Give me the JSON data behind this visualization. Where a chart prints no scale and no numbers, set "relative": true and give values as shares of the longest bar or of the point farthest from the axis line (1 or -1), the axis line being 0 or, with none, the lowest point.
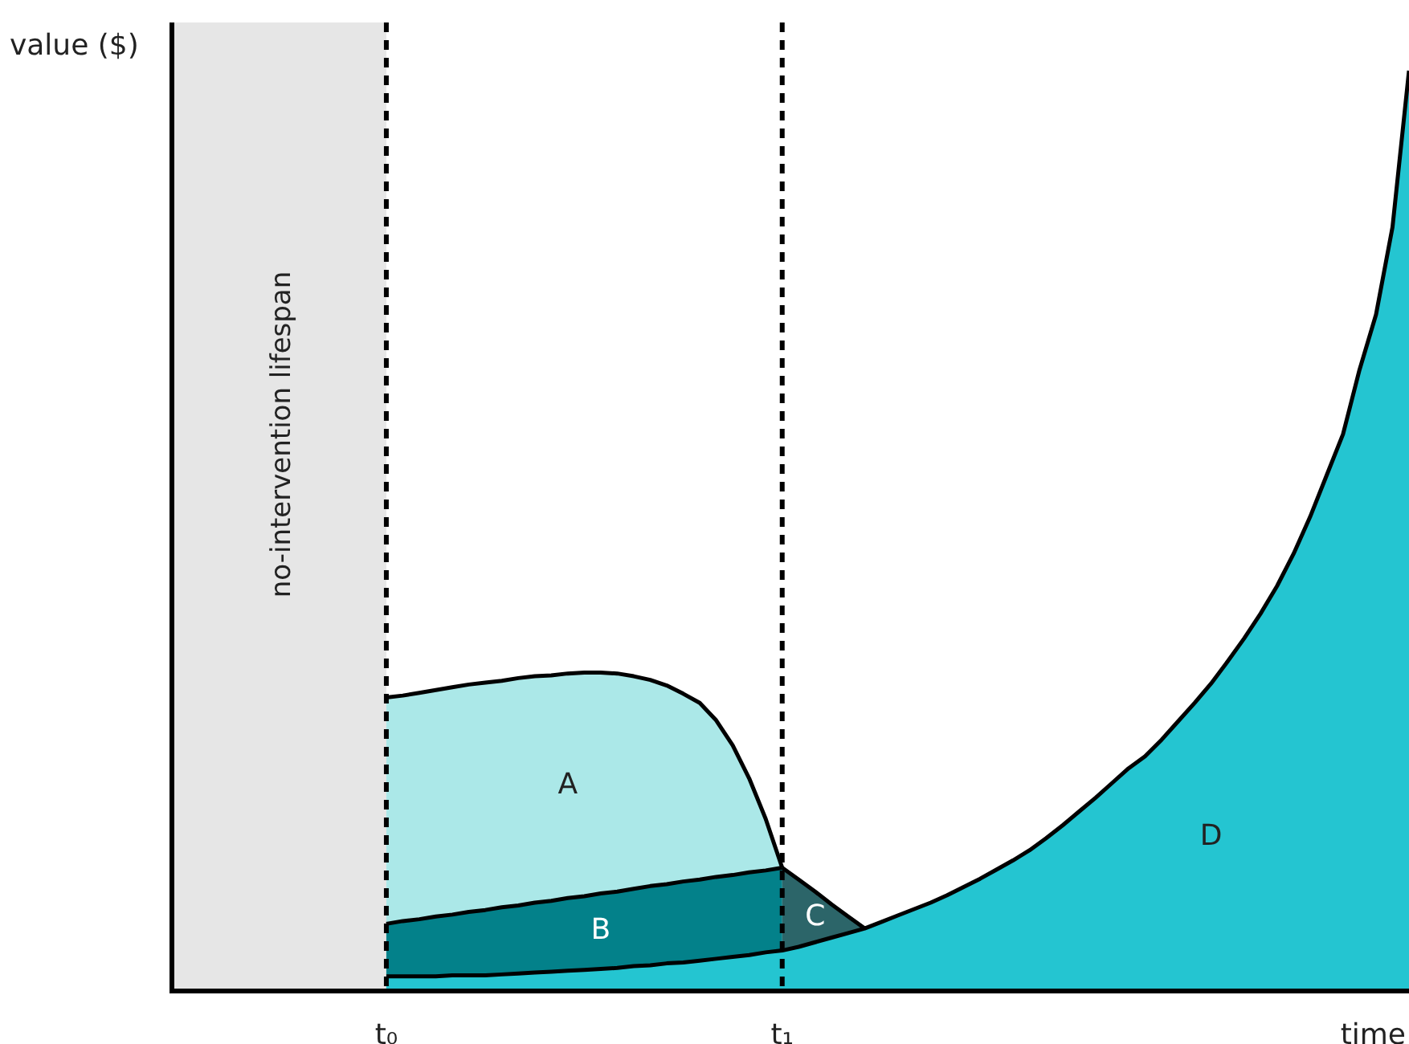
{
  "chart_data": {
    "type": "area",
    "relative": true,
    "xlabel": "time",
    "ylabel": "value ($)",
    "categories": [
      null,
      null,
      null,
      null,
      null,
      null,
      null,
      null,
      null,
      null,
      null,
      null,
      null,
      "t₀",
      null,
      null,
      null,
      null,
      null,
      null,
      null,
      null,
      null,
      null,
      null,
      null,
      null,
      null,
      null,
      null,
      null,
      null,
      null,
      null,
      null,
      null,
      null,
      "t₁",
      null,
      null,
      null,
      null,
      null,
      null,
      null,
      null,
      null,
      null,
      null,
      null,
      null,
      null,
      null,
      null,
      null,
      null,
      null,
      null,
      null,
      null,
      null,
      null,
      null,
      null,
      null,
      null,
      null,
      null,
      null,
      null,
      null,
      null,
      null,
      null,
      null,
      null
    ],
    "series": [
      {
        "name": "A",
        "color": "#abe8e8",
        "values": [
          null,
          null,
          null,
          null,
          null,
          null,
          null,
          null,
          null,
          null,
          null,
          null,
          null,
          0.319,
          0.321,
          0.324,
          0.327,
          0.33,
          0.333,
          0.335,
          0.337,
          0.34,
          0.342,
          0.343,
          0.345,
          0.346,
          0.346,
          0.345,
          0.342,
          0.338,
          0.332,
          0.323,
          0.313,
          0.294,
          0.267,
          0.231,
          0.187,
          0.134,
          null,
          null,
          null,
          null,
          null,
          null,
          null,
          null,
          null,
          null,
          null,
          null,
          null,
          null,
          null,
          null,
          null,
          null,
          null,
          null,
          null,
          null,
          null,
          null,
          null,
          null,
          null,
          null,
          null,
          null,
          null,
          null,
          null,
          null,
          null,
          null,
          null,
          null
        ]
      },
      {
        "name": "B",
        "color": "#03818a",
        "values": [
          null,
          null,
          null,
          null,
          null,
          null,
          null,
          null,
          null,
          null,
          null,
          null,
          null,
          0.073,
          0.076,
          0.078,
          0.081,
          0.083,
          0.086,
          0.088,
          0.091,
          0.093,
          0.096,
          0.098,
          0.101,
          0.103,
          0.106,
          0.108,
          0.111,
          0.114,
          0.116,
          0.119,
          0.121,
          0.124,
          0.126,
          0.129,
          0.131,
          0.134,
          null,
          null,
          null,
          null,
          null,
          null,
          null,
          null,
          null,
          null,
          null,
          null,
          null,
          null,
          null,
          null,
          null,
          null,
          null,
          null,
          null,
          null,
          null,
          null,
          null,
          null,
          null,
          null,
          null,
          null,
          null,
          null,
          null,
          null,
          null,
          null,
          null,
          null
        ]
      },
      {
        "name": "C",
        "color": "#2c6569",
        "values": [
          null,
          null,
          null,
          null,
          null,
          null,
          null,
          null,
          null,
          null,
          null,
          null,
          null,
          null,
          null,
          null,
          null,
          null,
          null,
          null,
          null,
          null,
          null,
          null,
          null,
          null,
          null,
          null,
          null,
          null,
          null,
          null,
          null,
          null,
          null,
          null,
          null,
          0.134,
          0.121,
          0.108,
          0.094,
          0.081,
          0.068,
          null,
          null,
          null,
          null,
          null,
          null,
          null,
          null,
          null,
          null,
          null,
          null,
          null,
          null,
          null,
          null,
          null,
          null,
          null,
          null,
          null,
          null,
          null,
          null,
          null,
          null,
          null,
          null,
          null,
          null,
          null,
          null,
          null
        ]
      },
      {
        "name": "D",
        "color": "#24c5d1",
        "values": [
          null,
          null,
          null,
          null,
          null,
          null,
          null,
          null,
          null,
          null,
          null,
          null,
          null,
          0.016,
          0.016,
          0.016,
          0.016,
          0.017,
          0.017,
          0.017,
          0.018,
          0.019,
          0.02,
          0.021,
          0.022,
          0.023,
          0.024,
          0.025,
          0.027,
          0.028,
          0.03,
          0.031,
          0.033,
          0.035,
          0.037,
          0.039,
          0.042,
          0.044,
          0.048,
          0.053,
          0.058,
          0.063,
          0.068,
          0.075,
          0.082,
          0.089,
          0.096,
          0.104,
          0.113,
          0.122,
          0.132,
          0.142,
          0.153,
          0.166,
          0.18,
          0.195,
          0.21,
          0.226,
          0.242,
          0.255,
          0.273,
          0.293,
          0.313,
          0.334,
          0.358,
          0.383,
          0.41,
          0.44,
          0.475,
          0.515,
          0.56,
          0.605,
          0.675,
          0.735,
          0.83,
          1
        ]
      }
    ],
    "ref_lines": [
      {
        "axis": "x",
        "value": "t₀",
        "line_style": "dashed"
      },
      {
        "axis": "x",
        "value": "t₁",
        "line_style": "dashed"
      }
    ],
    "annotations": [
      "no-intervention lifespan"
    ]
  }
}
